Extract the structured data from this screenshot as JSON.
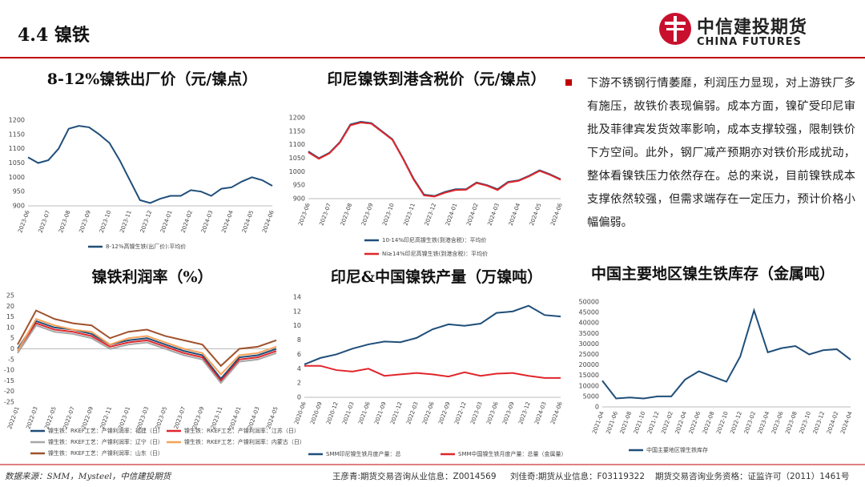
{
  "header": {
    "title": "4.4 镍铁",
    "logo_cn": "中信建投期货",
    "logo_en": "CHINA FUTURES"
  },
  "text": "下游不锈钢行情萎靡，利润压力显现，对上游铁厂多有施压，故铁价表现偏弱。成本方面，镍矿受印尼审批及菲律宾发货效率影响，成本支撑较强，限制铁价下方空间。此外，钢厂减产预期亦对铁价形成扰动，整体看镍铁压力依然存在。总的来说，目前镍铁成本支撑依然较强，但需求端存在一定压力，预计价格小幅偏弱。",
  "footer": {
    "source": "数据来源：SMM，Mysteel，中信建投期货",
    "analyst1": "王彦青:期货交易咨询从业信息：Z0014569",
    "analyst2": "刘佳奇:期货从业信息：F03119322",
    "license": "期货交易咨询业务资格：证监许可（2011）1461号"
  },
  "chart_data": [
    {
      "type": "line",
      "title": "8-12%镍铁出厂价（元/镍点）",
      "categories": [
        "2023-06",
        null,
        "2023-07",
        null,
        "2023-08",
        null,
        "2023-09",
        null,
        "2023-10",
        null,
        "2023-11",
        null,
        "2023-12",
        null,
        "2024-01",
        null,
        "2024-02",
        null,
        "2024-03",
        null,
        "2024-04",
        null,
        "2024-05",
        null,
        "2024-06"
      ],
      "series": [
        {
          "name": "8-12%高镍生铁(出厂价):平均价",
          "color": "#1f4e79",
          "values": [
            1070,
            1050,
            1060,
            1100,
            1170,
            1180,
            1175,
            1150,
            1120,
            1060,
            990,
            920,
            910,
            925,
            935,
            935,
            955,
            950,
            935,
            960,
            965,
            985,
            1000,
            990,
            970
          ]
        }
      ],
      "ylim": [
        900,
        1200
      ],
      "yticks": [
        900,
        950,
        1000,
        1050,
        1100,
        1150,
        1200
      ],
      "grid": false
    },
    {
      "type": "line",
      "title": "印尼镍铁到港含税价（元/镍点）",
      "categories": [
        "2023-06",
        null,
        "2023-07",
        null,
        "2023-08",
        null,
        "2023-09",
        null,
        "2023-10",
        null,
        "2023-11",
        null,
        "2023-12",
        null,
        "2024-01",
        null,
        "2024-02",
        null,
        "2024-03",
        null,
        "2024-04",
        null,
        "2024-05",
        null,
        "2024-06"
      ],
      "series": [
        {
          "name": "10-14%印尼高镍生铁(到港含税)：平均价",
          "color": "#1f4e79",
          "values": [
            1075,
            1050,
            1070,
            1110,
            1175,
            1185,
            1180,
            1150,
            1120,
            1050,
            975,
            915,
            910,
            925,
            935,
            935,
            960,
            950,
            935,
            962,
            968,
            985,
            1005,
            990,
            972
          ]
        },
        {
          "name": "Ni≥14%印尼高镍生铁(到港含税)：平均价",
          "color": "#e0262b",
          "values": [
            1072,
            1048,
            1068,
            1108,
            1172,
            1182,
            1178,
            1148,
            1118,
            1048,
            972,
            912,
            908,
            922,
            932,
            933,
            958,
            948,
            932,
            960,
            966,
            983,
            1003,
            988,
            970
          ]
        }
      ],
      "ylim": [
        900,
        1200
      ],
      "yticks": [
        900,
        950,
        1000,
        1050,
        1100,
        1150,
        1200
      ],
      "grid": false
    },
    {
      "type": "line",
      "title": "镍铁利润率（%）",
      "categories": [
        "2022-01",
        "2022-03",
        "2022-05",
        "2022-07",
        "2022-09",
        "2022-11",
        "2023-01",
        "2023-03",
        "2023-05",
        "2023-07",
        "2023-09",
        "2023-11",
        "2024-01",
        "2024-03",
        "2024-05"
      ],
      "series": [
        {
          "name": "镍生铁：RKEF工艺：产镍利润率：福建（日）",
          "color": "#1f4e79",
          "values": [
            0,
            13,
            10,
            9,
            7,
            2,
            4,
            5,
            2,
            -1,
            -3,
            -14,
            -4,
            -3,
            0
          ]
        },
        {
          "name": "镍生铁：RKEF工艺：产镍利润率：江苏（日）",
          "color": "#e0262b",
          "values": [
            -1,
            12,
            9,
            8,
            6,
            1,
            3,
            4,
            1,
            -2,
            -4,
            -15,
            -5,
            -4,
            -1
          ]
        },
        {
          "name": "镍生铁：RKEF工艺：产镍利润率：辽宁（日）",
          "color": "#a6a6a6",
          "values": [
            -2,
            11,
            8,
            7,
            5,
            0,
            2,
            3,
            0,
            -3,
            -5,
            -16,
            -6,
            -5,
            -2
          ]
        },
        {
          "name": "镍生铁：RKEF工艺：产镍利润率：内蒙古（日）",
          "color": "#f4a259",
          "values": [
            -1,
            14,
            11,
            9,
            8,
            2,
            5,
            6,
            3,
            0,
            -2,
            -12,
            -3,
            -2,
            1
          ]
        },
        {
          "name": "镍生铁：RKEF工艺：产镍利润率：山东（日）",
          "color": "#a0522d",
          "values": [
            2,
            18,
            14,
            12,
            11,
            5,
            8,
            9,
            6,
            4,
            2,
            -8,
            0,
            1,
            4
          ]
        }
      ],
      "ylim": [
        -25,
        25
      ],
      "yticks": [
        -25,
        -20,
        -15,
        -10,
        -5,
        0,
        5,
        10,
        15,
        20,
        25
      ],
      "grid": false
    },
    {
      "type": "line",
      "title": "印尼&中国镍铁产量（万镍吨）",
      "categories": [
        "2020-06",
        "2020-09",
        "2020-12",
        "2021-03",
        "2021-06",
        "2021-09",
        "2021-12",
        "2022-03",
        "2022-06",
        "2022-09",
        "2022-12",
        "2023-03",
        "2023-06",
        "2023-09",
        "2023-12",
        "2024-03",
        "2024-06"
      ],
      "series": [
        {
          "name": "SMM印尼镍生铁月度产量：总",
          "color": "#1f4e79",
          "values": [
            4.6,
            5.5,
            6.0,
            6.8,
            7.4,
            7.8,
            7.7,
            8.3,
            9.5,
            10.2,
            10.0,
            10.3,
            11.8,
            12.0,
            12.8,
            11.5,
            11.3
          ]
        },
        {
          "name": "SMM中国镍生铁月度产量：总量（金属量）",
          "color": "#e0262b",
          "values": [
            4.4,
            4.4,
            3.8,
            3.6,
            4.0,
            3.0,
            3.2,
            3.4,
            3.2,
            2.9,
            3.5,
            3.0,
            3.3,
            3.4,
            3.0,
            2.7,
            2.7
          ]
        }
      ],
      "ylim": [
        0,
        14
      ],
      "yticks": [
        0,
        2,
        4,
        6,
        8,
        10,
        12,
        14
      ],
      "grid": false
    },
    {
      "type": "line",
      "title": "中国主要地区镍生铁库存（金属吨）",
      "categories": [
        "2021-04",
        "2021-06",
        "2021-08",
        "2021-10",
        "2021-12",
        "2022-02",
        "2022-04",
        "2022-06",
        "2022-08",
        "2022-10",
        "2022-12",
        "2023-02",
        "2023-04",
        "2023-06",
        "2023-08",
        "2023-10",
        "2023-12",
        "2024-02",
        "2024-04"
      ],
      "series": [
        {
          "name": "中国主要地区镍生铁库存",
          "color": "#1f4e79",
          "values": [
            12500,
            4000,
            4500,
            4000,
            5000,
            5000,
            13000,
            17000,
            14500,
            12000,
            24000,
            46000,
            26000,
            28000,
            29000,
            25000,
            27000,
            27500,
            22500
          ]
        }
      ],
      "ylim": [
        0,
        50000
      ],
      "yticks": [
        0,
        5000,
        10000,
        15000,
        20000,
        25000,
        30000,
        35000,
        40000,
        45000,
        50000
      ],
      "grid": false
    }
  ]
}
